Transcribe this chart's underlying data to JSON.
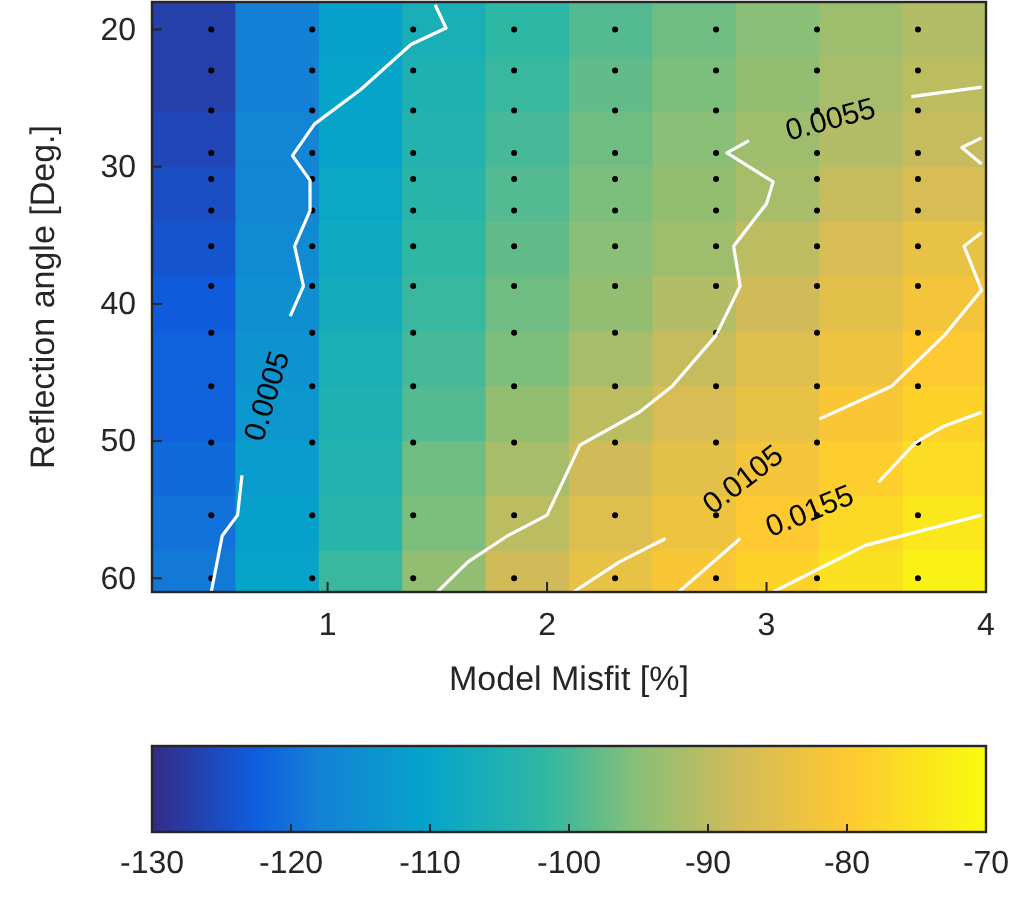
{
  "chart_data": {
    "type": "heatmap",
    "xlabel": "Model Misfit [%]",
    "ylabel": "Reflection angle [Deg.]",
    "x": [
      0.39,
      0.77,
      1.15,
      1.53,
      1.91,
      2.29,
      2.67,
      3.05,
      3.43,
      3.81
    ],
    "y": [
      20,
      24,
      28,
      32,
      36,
      40,
      44,
      48,
      52,
      56,
      60
    ],
    "cells": [
      [
        -127,
        -118,
        -111,
        -106,
        -102,
        -99,
        -97,
        -95,
        -93,
        -91
      ],
      [
        -127,
        -118,
        -110,
        -105,
        -101,
        -98,
        -96,
        -94,
        -92,
        -90
      ],
      [
        -126,
        -117,
        -110,
        -104,
        -100,
        -97,
        -95,
        -93,
        -91,
        -89
      ],
      [
        -125,
        -117,
        -109,
        -103,
        -99,
        -96,
        -94,
        -92,
        -89,
        -87
      ],
      [
        -124,
        -116,
        -108,
        -102,
        -98,
        -95,
        -93,
        -90,
        -87,
        -84
      ],
      [
        -123,
        -115,
        -107,
        -101,
        -97,
        -94,
        -91,
        -88,
        -85,
        -82
      ],
      [
        -122,
        -114,
        -106,
        -100,
        -96,
        -92,
        -89,
        -86,
        -83,
        -80
      ],
      [
        -122,
        -113,
        -105,
        -99,
        -94,
        -90,
        -87,
        -84,
        -81,
        -78
      ],
      [
        -121,
        -112,
        -104,
        -97,
        -92,
        -88,
        -85,
        -82,
        -79,
        -76
      ],
      [
        -120,
        -111,
        -103,
        -96,
        -90,
        -86,
        -83,
        -80,
        -77,
        -74
      ],
      [
        -119,
        -110,
        -101,
        -94,
        -88,
        -84,
        -81,
        -78,
        -75,
        -72
      ]
    ],
    "clim": [
      -130,
      -70
    ],
    "cticks": [
      -130,
      -120,
      -110,
      -100,
      -90,
      -80,
      -70
    ],
    "xlim": [
      0.2,
      4
    ],
    "xticks": [
      1,
      2,
      3,
      4
    ],
    "ylim": [
      61,
      18
    ],
    "yticks": [
      20,
      30,
      40,
      50,
      60
    ],
    "series": [
      {
        "type": "scatter",
        "color": "#000000",
        "marker": "circle",
        "x": [
          0.47,
          0.47,
          0.47,
          0.47,
          0.47,
          0.47,
          0.47,
          0.47,
          0.47,
          0.47,
          0.47,
          0.47,
          0.47,
          0.93,
          0.93,
          0.93,
          0.93,
          0.93,
          0.93,
          0.93,
          0.93,
          0.93,
          0.93,
          0.93,
          0.93,
          0.93,
          1.39,
          1.39,
          1.39,
          1.39,
          1.39,
          1.39,
          1.39,
          1.39,
          1.39,
          1.39,
          1.39,
          1.39,
          1.39,
          1.85,
          1.85,
          1.85,
          1.85,
          1.85,
          1.85,
          1.85,
          1.85,
          1.85,
          1.85,
          1.85,
          1.85,
          1.85,
          2.31,
          2.31,
          2.31,
          2.31,
          2.31,
          2.31,
          2.31,
          2.31,
          2.31,
          2.31,
          2.31,
          2.31,
          2.31,
          2.77,
          2.77,
          2.77,
          2.77,
          2.77,
          2.77,
          2.77,
          2.77,
          2.77,
          2.77,
          2.77,
          2.77,
          2.77,
          3.23,
          3.23,
          3.23,
          3.23,
          3.23,
          3.23,
          3.23,
          3.23,
          3.23,
          3.23,
          3.23,
          3.23,
          3.23,
          3.69,
          3.69,
          3.69,
          3.69,
          3.69,
          3.69,
          3.69,
          3.69,
          3.69,
          3.69,
          3.69,
          3.69,
          3.69
        ],
        "values": [
          20,
          23,
          25.9,
          29,
          30.9,
          33.2,
          35.8,
          38.7,
          42.1,
          46,
          50.1,
          55.4,
          60,
          20,
          23,
          25.9,
          29,
          30.9,
          33.2,
          35.8,
          38.7,
          42.1,
          46,
          50.1,
          55.4,
          60,
          20,
          23,
          25.9,
          29,
          30.9,
          33.2,
          35.8,
          38.7,
          42.1,
          46,
          50.1,
          55.4,
          60,
          20,
          23,
          25.9,
          29,
          30.9,
          33.2,
          35.8,
          38.7,
          42.1,
          46,
          50.1,
          55.4,
          60,
          20,
          23,
          25.9,
          29,
          30.9,
          33.2,
          35.8,
          38.7,
          42.1,
          46,
          50.1,
          55.4,
          60,
          20,
          23,
          25.9,
          29,
          30.9,
          33.2,
          35.8,
          38.7,
          42.1,
          46,
          50.1,
          55.4,
          60,
          20,
          23,
          25.9,
          29,
          30.9,
          33.2,
          35.8,
          38.7,
          42.1,
          46,
          50.1,
          55.4,
          60,
          20,
          23,
          25.9,
          29,
          30.9,
          33.2,
          35.8,
          38.7,
          42.1,
          46,
          50.1,
          55.4,
          60
        ]
      },
      {
        "type": "line",
        "name": "0.0005",
        "color": "#ffffff",
        "x": [
          1.49,
          1.54,
          1.38,
          1.15,
          0.94,
          0.84,
          0.92,
          0.92,
          0.85,
          0.89,
          0.83,
          0.72,
          0.61,
          0.59,
          0.52,
          0.47
        ],
        "values": [
          18.2,
          19.9,
          21.1,
          24.4,
          26.9,
          29.2,
          31,
          33.2,
          35.8,
          38.7,
          40.9,
          null,
          52.5,
          55.4,
          56.9,
          61
        ]
      },
      {
        "type": "line",
        "name": "0.0055",
        "color": "#ffffff",
        "x": [
          3.98,
          3.66,
          3.29,
          2.92,
          2.82,
          3.03,
          3.0,
          2.85,
          2.88,
          2.77,
          2.57,
          2.42,
          2.15,
          2.0,
          1.82,
          1.64,
          1.5
        ],
        "values": [
          24.2,
          24.9,
          null,
          28.1,
          29,
          31.1,
          32.7,
          35.8,
          38.7,
          42.3,
          46,
          47.9,
          50.3,
          55.4,
          56.9,
          58.8,
          61
        ]
      },
      {
        "type": "line",
        "name": "0.0105",
        "color": "#ffffff",
        "x": [
          3.98,
          3.9,
          3.98,
          3.81,
          3.57,
          3.24,
          2.89,
          2.54,
          2.33,
          2.12
        ],
        "values": [
          34.8,
          35.8,
          39,
          42.3,
          46,
          48.4,
          null,
          57.1,
          58.8,
          61
        ]
      },
      {
        "type": "line",
        "name": "0.0155",
        "color": "#ffffff",
        "x": [
          3.98,
          3.81,
          3.68,
          3.51,
          3.2,
          2.88,
          2.6
        ],
        "values": [
          47.9,
          48.9,
          50.1,
          53,
          null,
          57.1,
          61
        ]
      },
      {
        "type": "line",
        "color": "#ffffff",
        "x": [
          3.98,
          3.89,
          3.98
        ],
        "values": [
          27.9,
          28.6,
          29.8
        ]
      },
      {
        "type": "line",
        "color": "#ffffff",
        "x": [
          3.98,
          3.45,
          3.03
        ],
        "values": [
          55.4,
          57.6,
          61
        ]
      }
    ]
  }
}
